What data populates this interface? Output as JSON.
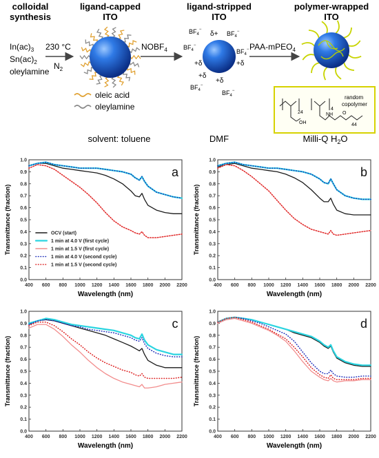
{
  "scheme": {
    "stages": [
      {
        "title_line1": "colloidal",
        "title_line2": "synthesis"
      },
      {
        "title_line1": "ligand-capped",
        "title_line2": "ITO"
      },
      {
        "title_line1": "ligand-stripped",
        "title_line2": "ITO"
      },
      {
        "title_line1": "polymer-wrapped",
        "title_line2": "ITO"
      }
    ],
    "precursors": {
      "line1": "In(ac)",
      "line1_sub": "3",
      "line2": "Sn(ac)",
      "line2_sub": "2",
      "line3": "oleylamine"
    },
    "step1": {
      "temp": "230 °C",
      "gas": "N",
      "gas_sub": "2"
    },
    "step2": {
      "reagent": "NOBF",
      "reagent_sub": "4"
    },
    "step3": {
      "reagent": "PAA-mPEO",
      "reagent_sub": "4"
    },
    "legend": {
      "oleic": "oleic acid",
      "oleylamine": "oleylamine"
    },
    "ions": {
      "bf": "BF",
      "bf_sub": "4",
      "bf_sup": "−",
      "delta_plus": "+δ",
      "delta_plus_alt": "δ+"
    },
    "copolymer": {
      "label_line1": "random",
      "label_line2": "copolymer",
      "sub_24": "24",
      "sub_4": "4",
      "sub_44": "44",
      "oh": "OH",
      "nh": "NH",
      "o": "O"
    },
    "solvents": {
      "s1": "solvent: toluene",
      "s2": "DMF",
      "s3": "Milli-Q H",
      "s3_sub": "2",
      "s3_tail": "O"
    },
    "colors": {
      "sphere": "#1f5fc9",
      "oleic": "#e0a030",
      "oleyl": "#888888",
      "polymer": "#c8d400",
      "box": "#d8d400"
    }
  },
  "chart_data": [
    {
      "type": "line",
      "panel_label": "a",
      "xlabel": "Wavelength (nm)",
      "ylabel": "Transmittance (fraction)",
      "xlim": [
        400,
        2200
      ],
      "ylim": [
        0.0,
        1.0
      ],
      "xticks": [
        "400",
        "600",
        "800",
        "1000",
        "1200",
        "1400",
        "1600",
        "1800",
        "2000",
        "2200"
      ],
      "yticks": [
        "0.0",
        "0.1",
        "0.2",
        "0.3",
        "0.4",
        "0.5",
        "0.6",
        "0.7",
        "0.8",
        "0.9",
        "1.0"
      ],
      "legend": "bottom-left",
      "x": [
        400,
        500,
        600,
        700,
        800,
        900,
        1000,
        1100,
        1200,
        1300,
        1400,
        1500,
        1600,
        1650,
        1700,
        1730,
        1760,
        1800,
        1900,
        2000,
        2100,
        2200
      ],
      "series": [
        {
          "name": "OCV (start)",
          "color": "#1a1a1a",
          "style": "solid",
          "values": [
            0.95,
            0.97,
            0.97,
            0.95,
            0.93,
            0.92,
            0.91,
            0.9,
            0.89,
            0.87,
            0.84,
            0.8,
            0.74,
            0.7,
            0.69,
            0.72,
            0.67,
            0.62,
            0.58,
            0.56,
            0.55,
            0.55
          ]
        },
        {
          "name": "1 min at 4.0 V (first cycle)",
          "color": "#2ad4e0",
          "style": "solid",
          "values": [
            0.95,
            0.97,
            0.98,
            0.96,
            0.95,
            0.94,
            0.93,
            0.93,
            0.93,
            0.92,
            0.91,
            0.9,
            0.88,
            0.85,
            0.83,
            0.86,
            0.82,
            0.78,
            0.73,
            0.71,
            0.69,
            0.68
          ]
        },
        {
          "name": "1 min at 1.5 V (first cycle)",
          "color": "#f28c8c",
          "style": "solid",
          "values": [
            0.93,
            0.96,
            0.95,
            0.92,
            0.87,
            0.82,
            0.77,
            0.71,
            0.64,
            0.56,
            0.49,
            0.44,
            0.41,
            0.39,
            0.38,
            0.4,
            0.37,
            0.35,
            0.35,
            0.36,
            0.37,
            0.38
          ]
        },
        {
          "name": "1 min at 4.0 V (second cycle)",
          "color": "#2233bb",
          "style": "dotted",
          "values": [
            0.95,
            0.97,
            0.98,
            0.96,
            0.95,
            0.94,
            0.93,
            0.93,
            0.93,
            0.92,
            0.91,
            0.9,
            0.88,
            0.85,
            0.83,
            0.86,
            0.82,
            0.78,
            0.73,
            0.71,
            0.69,
            0.68
          ]
        },
        {
          "name": "1 min at 1.5 V (second cycle)",
          "color": "#dd2222",
          "style": "dotted",
          "values": [
            0.93,
            0.96,
            0.95,
            0.92,
            0.87,
            0.82,
            0.77,
            0.71,
            0.64,
            0.56,
            0.49,
            0.44,
            0.41,
            0.39,
            0.38,
            0.4,
            0.37,
            0.35,
            0.35,
            0.36,
            0.37,
            0.38
          ]
        }
      ]
    },
    {
      "type": "line",
      "panel_label": "b",
      "xlabel": "Wavelength (nm)",
      "ylabel": "Transmittance (fraction)",
      "xlim": [
        400,
        2200
      ],
      "ylim": [
        0.0,
        1.0
      ],
      "xticks": [
        "400",
        "600",
        "800",
        "1000",
        "1200",
        "1400",
        "1600",
        "1800",
        "2000",
        "2200"
      ],
      "yticks": [
        "0.0",
        "0.1",
        "0.2",
        "0.3",
        "0.4",
        "0.5",
        "0.6",
        "0.7",
        "0.8",
        "0.9",
        "1.0"
      ],
      "x": [
        400,
        500,
        600,
        700,
        800,
        900,
        1000,
        1100,
        1200,
        1300,
        1400,
        1500,
        1600,
        1650,
        1700,
        1730,
        1760,
        1800,
        1900,
        2000,
        2100,
        2200
      ],
      "series": [
        {
          "color": "#1a1a1a",
          "style": "solid",
          "values": [
            0.94,
            0.96,
            0.97,
            0.95,
            0.93,
            0.92,
            0.91,
            0.9,
            0.88,
            0.85,
            0.81,
            0.75,
            0.68,
            0.65,
            0.65,
            0.68,
            0.63,
            0.58,
            0.55,
            0.54,
            0.54,
            0.54
          ]
        },
        {
          "color": "#2ad4e0",
          "style": "solid",
          "values": [
            0.95,
            0.97,
            0.98,
            0.96,
            0.95,
            0.94,
            0.93,
            0.93,
            0.92,
            0.91,
            0.9,
            0.88,
            0.84,
            0.81,
            0.8,
            0.84,
            0.8,
            0.75,
            0.7,
            0.68,
            0.67,
            0.67
          ]
        },
        {
          "color": "#f28c8c",
          "style": "solid",
          "values": [
            0.93,
            0.96,
            0.95,
            0.91,
            0.86,
            0.8,
            0.74,
            0.66,
            0.58,
            0.51,
            0.46,
            0.42,
            0.4,
            0.39,
            0.38,
            0.41,
            0.38,
            0.37,
            0.38,
            0.39,
            0.4,
            0.41
          ]
        },
        {
          "color": "#2233bb",
          "style": "dotted",
          "values": [
            0.95,
            0.97,
            0.98,
            0.96,
            0.95,
            0.94,
            0.93,
            0.93,
            0.92,
            0.91,
            0.9,
            0.88,
            0.84,
            0.81,
            0.8,
            0.84,
            0.8,
            0.75,
            0.7,
            0.68,
            0.67,
            0.67
          ]
        },
        {
          "color": "#dd2222",
          "style": "dotted",
          "values": [
            0.93,
            0.96,
            0.95,
            0.91,
            0.86,
            0.8,
            0.74,
            0.66,
            0.58,
            0.51,
            0.46,
            0.42,
            0.4,
            0.39,
            0.38,
            0.41,
            0.38,
            0.37,
            0.38,
            0.39,
            0.4,
            0.41
          ]
        }
      ]
    },
    {
      "type": "line",
      "panel_label": "c",
      "xlabel": "Wavelength (nm)",
      "ylabel": "Transmittance (fraction)",
      "xlim": [
        400,
        2200
      ],
      "ylim": [
        0.0,
        1.0
      ],
      "xticks": [
        "400",
        "600",
        "800",
        "1000",
        "1200",
        "1400",
        "1600",
        "1800",
        "2000",
        "2200"
      ],
      "yticks": [
        "0.0",
        "0.1",
        "0.2",
        "0.3",
        "0.4",
        "0.5",
        "0.6",
        "0.7",
        "0.8",
        "0.9",
        "1.0"
      ],
      "x": [
        400,
        500,
        600,
        700,
        800,
        900,
        1000,
        1100,
        1200,
        1300,
        1400,
        1500,
        1600,
        1650,
        1700,
        1730,
        1760,
        1800,
        1900,
        2000,
        2100,
        2200
      ],
      "series": [
        {
          "color": "#1a1a1a",
          "style": "solid",
          "values": [
            0.89,
            0.92,
            0.93,
            0.92,
            0.9,
            0.88,
            0.86,
            0.84,
            0.82,
            0.8,
            0.77,
            0.74,
            0.71,
            0.69,
            0.67,
            0.69,
            0.64,
            0.59,
            0.55,
            0.53,
            0.53,
            0.53
          ]
        },
        {
          "color": "#2ad4e0",
          "style": "solid",
          "values": [
            0.9,
            0.92,
            0.94,
            0.93,
            0.91,
            0.89,
            0.88,
            0.87,
            0.86,
            0.85,
            0.84,
            0.82,
            0.8,
            0.78,
            0.77,
            0.81,
            0.76,
            0.72,
            0.68,
            0.66,
            0.64,
            0.64
          ]
        },
        {
          "color": "#f28c8c",
          "style": "solid",
          "values": [
            0.86,
            0.89,
            0.89,
            0.85,
            0.79,
            0.72,
            0.66,
            0.59,
            0.53,
            0.48,
            0.44,
            0.41,
            0.39,
            0.38,
            0.37,
            0.39,
            0.36,
            0.36,
            0.37,
            0.39,
            0.4,
            0.41
          ]
        },
        {
          "color": "#2233bb",
          "style": "dotted",
          "values": [
            0.89,
            0.92,
            0.93,
            0.92,
            0.9,
            0.88,
            0.87,
            0.85,
            0.84,
            0.83,
            0.82,
            0.8,
            0.78,
            0.76,
            0.75,
            0.78,
            0.73,
            0.69,
            0.65,
            0.63,
            0.62,
            0.62
          ]
        },
        {
          "color": "#dd2222",
          "style": "dotted",
          "values": [
            0.88,
            0.91,
            0.91,
            0.88,
            0.83,
            0.77,
            0.72,
            0.66,
            0.61,
            0.57,
            0.54,
            0.51,
            0.49,
            0.47,
            0.46,
            0.48,
            0.45,
            0.44,
            0.44,
            0.44,
            0.44,
            0.45
          ]
        }
      ]
    },
    {
      "type": "line",
      "panel_label": "d",
      "xlabel": "Wavelength (nm)",
      "ylabel": "Transmittance (fraction)",
      "xlim": [
        400,
        2200
      ],
      "ylim": [
        0.0,
        1.0
      ],
      "xticks": [
        "400",
        "600",
        "800",
        "1000",
        "1200",
        "1400",
        "1600",
        "1800",
        "2000",
        "2200"
      ],
      "yticks": [
        "0.0",
        "0.1",
        "0.2",
        "0.3",
        "0.4",
        "0.5",
        "0.6",
        "0.7",
        "0.8",
        "0.9",
        "1.0"
      ],
      "x": [
        400,
        500,
        600,
        700,
        800,
        900,
        1000,
        1100,
        1200,
        1300,
        1400,
        1500,
        1600,
        1650,
        1700,
        1730,
        1760,
        1800,
        1900,
        2000,
        2100,
        2200
      ],
      "series": [
        {
          "color": "#1a1a1a",
          "style": "solid",
          "values": [
            0.91,
            0.94,
            0.95,
            0.94,
            0.93,
            0.91,
            0.89,
            0.87,
            0.85,
            0.82,
            0.8,
            0.78,
            0.74,
            0.71,
            0.69,
            0.71,
            0.66,
            0.61,
            0.57,
            0.55,
            0.54,
            0.54
          ]
        },
        {
          "color": "#2ad4e0",
          "style": "solid",
          "values": [
            0.91,
            0.94,
            0.95,
            0.94,
            0.93,
            0.91,
            0.89,
            0.87,
            0.85,
            0.83,
            0.81,
            0.79,
            0.75,
            0.72,
            0.7,
            0.72,
            0.67,
            0.62,
            0.58,
            0.56,
            0.55,
            0.55
          ]
        },
        {
          "color": "#f28c8c",
          "style": "solid",
          "values": [
            0.9,
            0.93,
            0.94,
            0.92,
            0.9,
            0.87,
            0.84,
            0.8,
            0.75,
            0.67,
            0.58,
            0.5,
            0.45,
            0.43,
            0.42,
            0.44,
            0.42,
            0.41,
            0.42,
            0.42,
            0.43,
            0.43
          ]
        },
        {
          "color": "#2233bb",
          "style": "dotted",
          "values": [
            0.91,
            0.94,
            0.95,
            0.94,
            0.92,
            0.9,
            0.87,
            0.84,
            0.81,
            0.75,
            0.66,
            0.57,
            0.5,
            0.48,
            0.48,
            0.51,
            0.48,
            0.46,
            0.45,
            0.45,
            0.46,
            0.46
          ]
        },
        {
          "color": "#dd2222",
          "style": "dotted",
          "values": [
            0.91,
            0.94,
            0.95,
            0.93,
            0.91,
            0.88,
            0.85,
            0.81,
            0.77,
            0.7,
            0.62,
            0.53,
            0.47,
            0.45,
            0.44,
            0.47,
            0.44,
            0.43,
            0.43,
            0.43,
            0.44,
            0.44
          ]
        }
      ]
    }
  ]
}
